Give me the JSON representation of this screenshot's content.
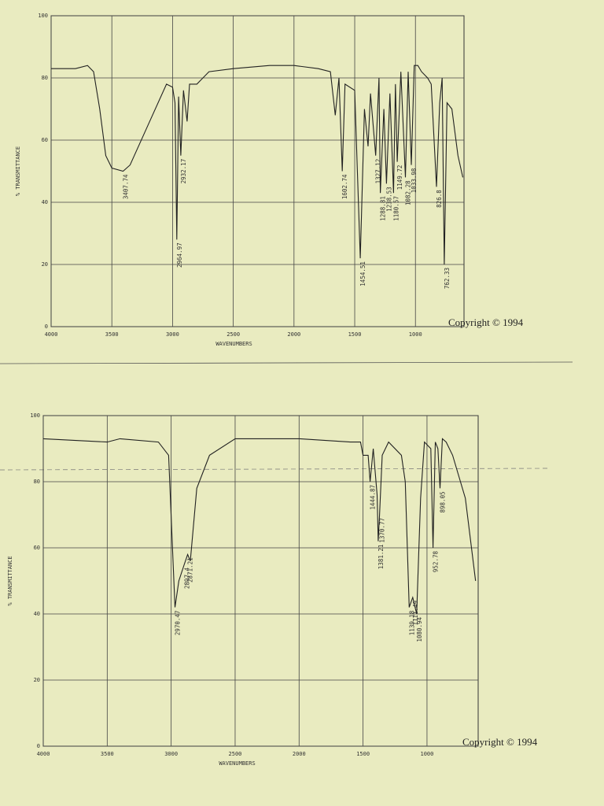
{
  "chart_data": [
    {
      "type": "line",
      "color": "#222222",
      "xlabel": "WAVENUMBERS",
      "ylabel": "% TRANSMITTANCE",
      "annotation": "Copyright © 1994",
      "xlim": [
        4000,
        600
      ],
      "ylim": [
        0,
        100
      ],
      "xticks": [
        4000,
        3500,
        3000,
        2500,
        2000,
        1500,
        1000
      ],
      "yticks": [
        0,
        20,
        40,
        60,
        80,
        100
      ],
      "grid": true,
      "x": [
        4000,
        3800,
        3700,
        3650,
        3600,
        3550,
        3500,
        3407.74,
        3350,
        3200,
        3050,
        3000,
        2980,
        2964.97,
        2950,
        2932.17,
        2910,
        2880,
        2860,
        2800,
        2700,
        2500,
        2200,
        2000,
        1800,
        1700,
        1660,
        1630,
        1602.74,
        1580,
        1500,
        1454.51,
        1420,
        1390,
        1370,
        1327.12,
        1300,
        1288.81,
        1260,
        1238.53,
        1210,
        1180.57,
        1165,
        1149.72,
        1120,
        1082.28,
        1060,
        1033.98,
        1010,
        980,
        950,
        900,
        870,
        826.8,
        800,
        780,
        762.33,
        740,
        700,
        650,
        610
      ],
      "values": [
        83,
        83,
        84,
        82,
        70,
        55,
        51,
        50,
        52,
        65,
        78,
        77,
        72,
        28,
        74,
        55,
        76,
        66,
        78,
        78,
        82,
        83,
        84,
        84,
        83,
        82,
        68,
        80,
        50,
        78,
        76,
        22,
        70,
        58,
        75,
        55,
        80,
        43,
        70,
        46,
        75,
        43,
        78,
        53,
        82,
        48,
        82,
        52,
        84,
        84,
        82,
        80,
        78,
        45,
        72,
        80,
        20,
        72,
        70,
        55,
        48
      ],
      "peaks": [
        3407.74,
        2964.97,
        2932.17,
        1602.74,
        1454.51,
        1327.12,
        1288.81,
        1238.53,
        1180.57,
        1149.72,
        1082.28,
        1033.98,
        826.8,
        762.33
      ]
    },
    {
      "type": "line",
      "color": "#222222",
      "xlabel": "WAVENUMBERS",
      "ylabel": "% TRANSMITTANCE",
      "annotation": "Copyright © 1994",
      "xlim": [
        4000,
        600
      ],
      "ylim": [
        0,
        100
      ],
      "xticks": [
        4000,
        3500,
        3000,
        2500,
        2000,
        1500,
        1000
      ],
      "yticks": [
        0,
        20,
        40,
        60,
        80,
        100
      ],
      "grid": true,
      "x": [
        4000,
        3500,
        3400,
        3100,
        3020,
        2990,
        2970.47,
        2940,
        2897.4,
        2871.21,
        2850,
        2800,
        2700,
        2500,
        2000,
        1600,
        1520,
        1500,
        1460,
        1444.87,
        1420,
        1390,
        1381.21,
        1370.77,
        1350,
        1300,
        1200,
        1170,
        1139.18,
        1111.49,
        1080.94,
        1050,
        1020,
        970,
        952.78,
        935,
        915,
        898.05,
        880,
        850,
        800,
        700,
        620
      ],
      "values": [
        93,
        92,
        93,
        92,
        88,
        60,
        42,
        50,
        55,
        58,
        56,
        78,
        88,
        93,
        93,
        92,
        92,
        88,
        88,
        80,
        90,
        76,
        62,
        70,
        88,
        92,
        88,
        80,
        42,
        45,
        40,
        75,
        92,
        90,
        60,
        92,
        90,
        78,
        93,
        92,
        88,
        75,
        50
      ],
      "peaks": [
        2970.47,
        2897.4,
        2871.21,
        1444.87,
        1381.21,
        1370.77,
        1139.18,
        1111.49,
        1080.94,
        952.78,
        898.05
      ]
    }
  ]
}
